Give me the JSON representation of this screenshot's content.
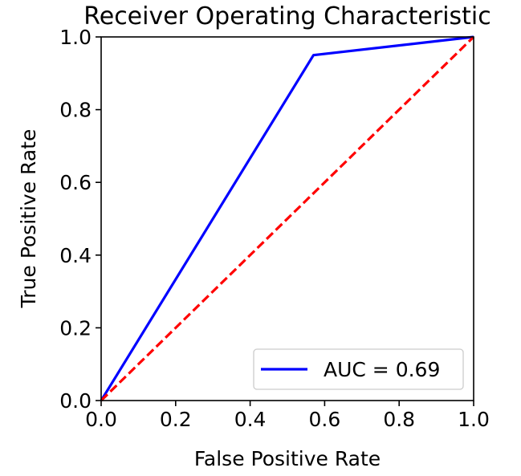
{
  "chart_data": {
    "type": "line",
    "title": "Receiver Operating Characteristic",
    "xlabel": "False Positive Rate",
    "ylabel": "True Positive Rate",
    "xlim": [
      0,
      1
    ],
    "ylim": [
      0,
      1
    ],
    "xticks": [
      "0.0",
      "0.2",
      "0.4",
      "0.6",
      "0.8",
      "1.0"
    ],
    "yticks": [
      "0.0",
      "0.2",
      "0.4",
      "0.6",
      "0.8",
      "1.0"
    ],
    "grid": false,
    "legend_position": "lower-right",
    "series": [
      {
        "name": "AUC = 0.69",
        "color": "#0000ff",
        "style": "solid",
        "x": [
          0.0,
          0.57,
          1.0
        ],
        "y": [
          0.0,
          0.95,
          1.0
        ]
      },
      {
        "name": "",
        "color": "#ff0000",
        "style": "dashed",
        "x": [
          0.0,
          1.0
        ],
        "y": [
          0.0,
          1.0
        ]
      }
    ]
  }
}
